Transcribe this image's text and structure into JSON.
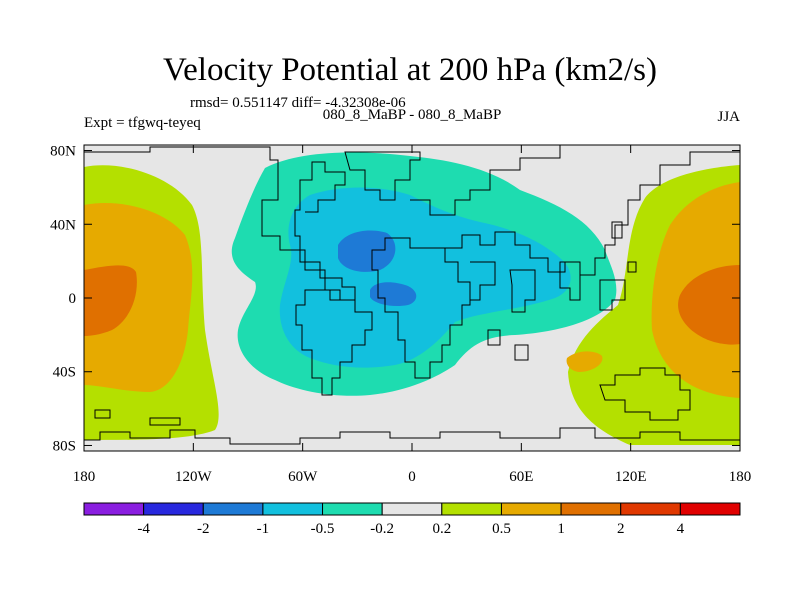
{
  "chart_data": {
    "type": "contour-map",
    "title": "Velocity Potential at 200 hPa (km2/s)",
    "stats": "rmsd= 0.551147 diff= -4.32308e-06",
    "case_label": "080_8_MaBP - 080_8_MaBP",
    "left_label": "Expt = tfgwq-teyeq",
    "right_label": "JJA",
    "x_ticks": [
      {
        "lon": -180,
        "label": "180"
      },
      {
        "lon": -120,
        "label": "120W"
      },
      {
        "lon": -60,
        "label": "60W"
      },
      {
        "lon": 0,
        "label": "0"
      },
      {
        "lon": 60,
        "label": "60E"
      },
      {
        "lon": 120,
        "label": "120E"
      },
      {
        "lon": 180,
        "label": "180"
      }
    ],
    "y_ticks": [
      {
        "lat": 80,
        "label": "80N"
      },
      {
        "lat": 40,
        "label": "40N"
      },
      {
        "lat": 0,
        "label": "0"
      },
      {
        "lat": -40,
        "label": "40S"
      },
      {
        "lat": -80,
        "label": "80S"
      }
    ],
    "colorbar": {
      "colors": [
        "#8a1ee0",
        "#2828de",
        "#1e7ad6",
        "#12c0de",
        "#1edcb0",
        "#e6e6e6",
        "#b4e000",
        "#e6aa00",
        "#e07000",
        "#e03800",
        "#e00000"
      ],
      "labels": [
        "-4",
        "-2",
        "-1",
        "-0.5",
        "-0.2",
        "0.2",
        "0.5",
        "1",
        "2",
        "4"
      ]
    }
  }
}
